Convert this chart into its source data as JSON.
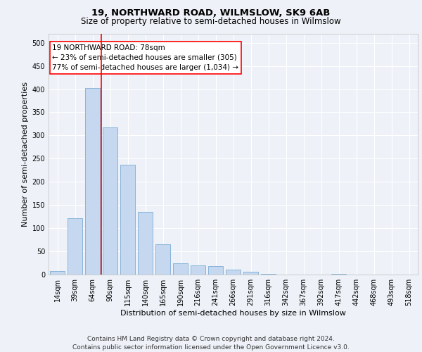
{
  "title_line1": "19, NORTHWARD ROAD, WILMSLOW, SK9 6AB",
  "title_line2": "Size of property relative to semi-detached houses in Wilmslow",
  "xlabel": "Distribution of semi-detached houses by size in Wilmslow",
  "ylabel": "Number of semi-detached properties",
  "categories": [
    "14sqm",
    "39sqm",
    "64sqm",
    "90sqm",
    "115sqm",
    "140sqm",
    "165sqm",
    "190sqm",
    "216sqm",
    "241sqm",
    "266sqm",
    "291sqm",
    "316sqm",
    "342sqm",
    "367sqm",
    "392sqm",
    "417sqm",
    "442sqm",
    "468sqm",
    "493sqm",
    "518sqm"
  ],
  "values": [
    7,
    122,
    402,
    317,
    237,
    135,
    65,
    25,
    20,
    18,
    11,
    6,
    1,
    0,
    0,
    0,
    1,
    0,
    0,
    0,
    0
  ],
  "bar_color": "#c5d8f0",
  "bar_edge_color": "#7aadd4",
  "vline_x": 2.5,
  "vline_label": "19 NORTHWARD ROAD: 78sqm",
  "annotation_smaller": "← 23% of semi-detached houses are smaller (305)",
  "annotation_larger": "77% of semi-detached houses are larger (1,034) →",
  "ylim": [
    0,
    520
  ],
  "yticks": [
    0,
    50,
    100,
    150,
    200,
    250,
    300,
    350,
    400,
    450,
    500
  ],
  "footer_line1": "Contains HM Land Registry data © Crown copyright and database right 2024.",
  "footer_line2": "Contains public sector information licensed under the Open Government Licence v3.0.",
  "background_color": "#eef2f8",
  "plot_bg_color": "#eef2f8",
  "grid_color": "#ffffff",
  "title_fontsize": 9.5,
  "subtitle_fontsize": 8.5,
  "axis_label_fontsize": 8,
  "tick_fontsize": 7,
  "footer_fontsize": 6.5,
  "annotation_fontsize": 7.5
}
